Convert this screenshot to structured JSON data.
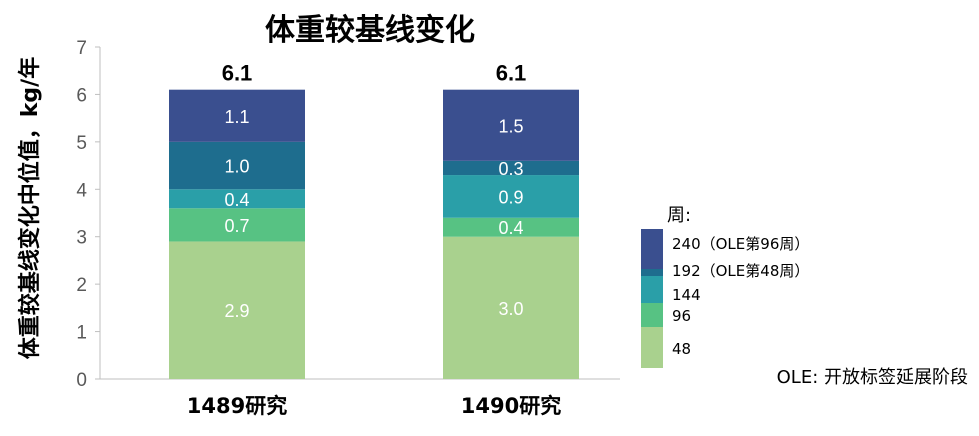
{
  "chart_data": {
    "type": "bar",
    "stacked": true,
    "title": "体重较基线变化",
    "xlabel": "",
    "ylabel": "体重较基线变化中位值，kg/年",
    "ylim": [
      0,
      7
    ],
    "yticks": [
      "0",
      "1",
      "2",
      "3",
      "4",
      "5",
      "6",
      "7"
    ],
    "categories": [
      "1489研究",
      "1490研究"
    ],
    "totals": [
      "6.1",
      "6.1"
    ],
    "legend_title": "周:",
    "legend_position": "right",
    "series": [
      {
        "name": "48",
        "values": [
          2.9,
          3.0
        ],
        "labels": [
          "2.9",
          "3.0"
        ],
        "color": "#a9d18e"
      },
      {
        "name": "96",
        "values": [
          0.7,
          0.4
        ],
        "labels": [
          "0.7",
          "0.4"
        ],
        "color": "#57c283"
      },
      {
        "name": "144",
        "values": [
          0.4,
          0.9
        ],
        "labels": [
          "0.4",
          "0.9"
        ],
        "color": "#2a9fa8"
      },
      {
        "name": "192（OLE第48周）",
        "values": [
          1.0,
          0.3
        ],
        "labels": [
          "1.0",
          "0.3"
        ],
        "color": "#1e6d8e"
      },
      {
        "name": "240（OLE第96周）",
        "values": [
          1.1,
          1.5
        ],
        "labels": [
          "1.1",
          "1.5"
        ],
        "color": "#3a4f8f"
      }
    ],
    "footnote": "OLE: 开放标签延展阶段"
  }
}
